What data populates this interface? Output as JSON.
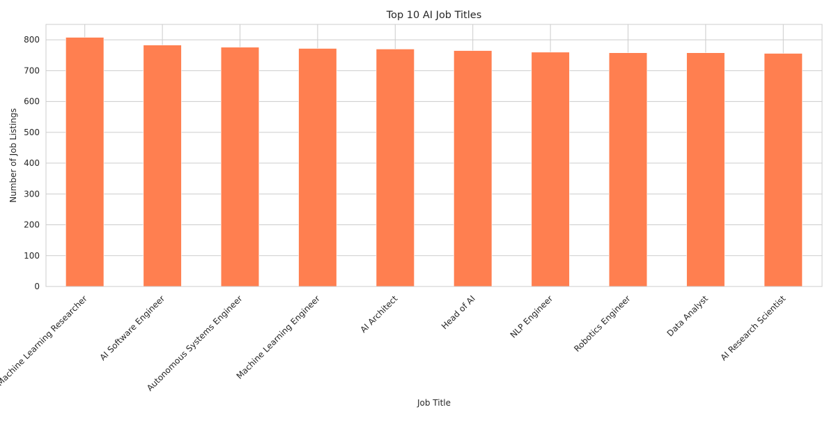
{
  "chart_data": {
    "type": "bar",
    "title": "Top 10 AI Job Titles",
    "xlabel": "Job Title",
    "ylabel": "Number of Job Listings",
    "categories": [
      "Machine Learning Researcher",
      "AI Software Engineer",
      "Autonomous Systems Engineer",
      "Machine Learning Engineer",
      "AI Architect",
      "Head of AI",
      "NLP Engineer",
      "Robotics Engineer",
      "Data Analyst",
      "AI Research Scientist"
    ],
    "values": [
      808,
      783,
      776,
      772,
      770,
      765,
      760,
      758,
      758,
      756
    ],
    "ylim": [
      0,
      850
    ],
    "yticks": [
      0,
      100,
      200,
      300,
      400,
      500,
      600,
      700,
      800
    ],
    "ytick_labels": [
      "0",
      "100",
      "200",
      "300",
      "400",
      "500",
      "600",
      "700",
      "800"
    ],
    "grid": true,
    "bar_color": "#ff7f50",
    "grid_color": "#cccccc"
  }
}
